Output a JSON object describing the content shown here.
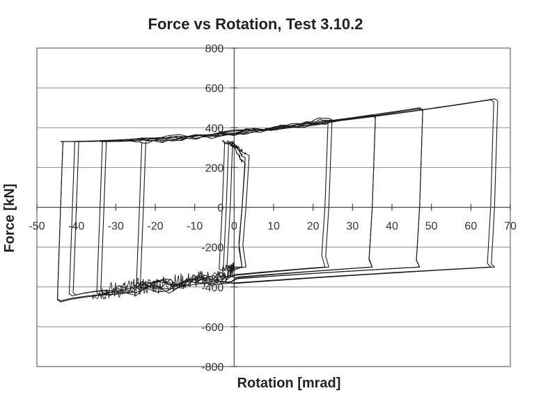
{
  "chart_data": {
    "type": "line",
    "title": "Force vs Rotation, Test 3.10.2",
    "xlabel": "Rotation [mrad]",
    "ylabel": "Force [kN]",
    "xlim": [
      -50,
      70
    ],
    "ylim": [
      -800,
      800
    ],
    "x_ticks": [
      -50,
      -40,
      -30,
      -20,
      -10,
      0,
      10,
      20,
      30,
      40,
      50,
      60,
      70
    ],
    "y_ticks": [
      -800,
      -600,
      -400,
      -200,
      0,
      200,
      400,
      600,
      800
    ],
    "x_tick_labels": [
      "-50",
      "-40",
      "-30",
      "-20",
      "-10",
      "0",
      "10",
      "20",
      "30",
      "40",
      "50",
      "60",
      "70"
    ],
    "y_tick_labels": [
      "-800",
      "-600",
      "-400",
      "-200",
      "0",
      "200",
      "400",
      "600",
      "800"
    ],
    "grid": true,
    "legend": "none",
    "series": [
      {
        "kind": "hysteresis_cycles",
        "color": "#1a1a1a",
        "cycles": [
          {
            "rmin": -1,
            "rmax": 2,
            "fmax": 260,
            "fmin": -300
          },
          {
            "rmin": -2,
            "rmax": 2,
            "fmax": 230,
            "fmin": -340
          },
          {
            "rmin": -3,
            "rmax": 3,
            "fmax": 270,
            "fmin": -320
          },
          {
            "rmin": -23,
            "rmax": 23,
            "fmax": 440,
            "fmin": -400
          },
          {
            "rmin": -24,
            "rmax": 24,
            "fmax": 450,
            "fmin": -410
          },
          {
            "rmin": -33,
            "rmax": 35,
            "fmax": 460,
            "fmin": -430
          },
          {
            "rmin": -34,
            "rmax": 35,
            "fmax": 465,
            "fmin": -440
          },
          {
            "rmin": -40,
            "rmax": 47,
            "fmax": 495,
            "fmin": -440
          },
          {
            "rmin": -41,
            "rmax": 47,
            "fmax": 500,
            "fmin": -445
          },
          {
            "rmin": -44,
            "rmax": 65,
            "fmax": 540,
            "fmin": -470
          },
          {
            "rmin": -44,
            "rmax": 66,
            "fmax": 545,
            "fmin": -475
          }
        ]
      }
    ]
  }
}
